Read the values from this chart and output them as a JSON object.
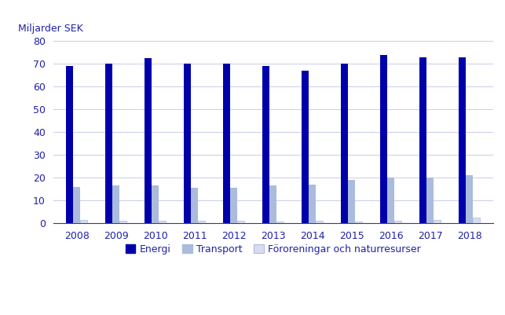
{
  "years": [
    2008,
    2009,
    2010,
    2011,
    2012,
    2013,
    2014,
    2015,
    2016,
    2017,
    2018
  ],
  "energi": [
    69,
    70,
    72.5,
    70,
    70,
    69,
    67,
    70,
    74,
    73,
    73
  ],
  "transport": [
    16,
    16.5,
    16.5,
    15.5,
    15.5,
    16.5,
    17,
    19,
    20,
    20,
    21
  ],
  "fororeningar": [
    1.5,
    1.2,
    1.2,
    1.2,
    1.0,
    0.8,
    1.0,
    0.8,
    1.2,
    1.5,
    2.5
  ],
  "energi_color": "#0000AA",
  "transport_color": "#AABBDD",
  "fororeningar_color": "#D8DCF0",
  "top_label": "Miljarder SEK",
  "ylim": [
    0,
    80
  ],
  "yticks": [
    0,
    10,
    20,
    30,
    40,
    50,
    60,
    70,
    80
  ],
  "legend_labels": [
    "Energi",
    "Transport",
    "Föroreningar och naturresurser"
  ],
  "bar_width": 0.18,
  "group_width": 0.6,
  "background_color": "#FFFFFF",
  "grid_color": "#C8CDE8",
  "axis_color": "#3333AA",
  "text_color": "#2020AA"
}
